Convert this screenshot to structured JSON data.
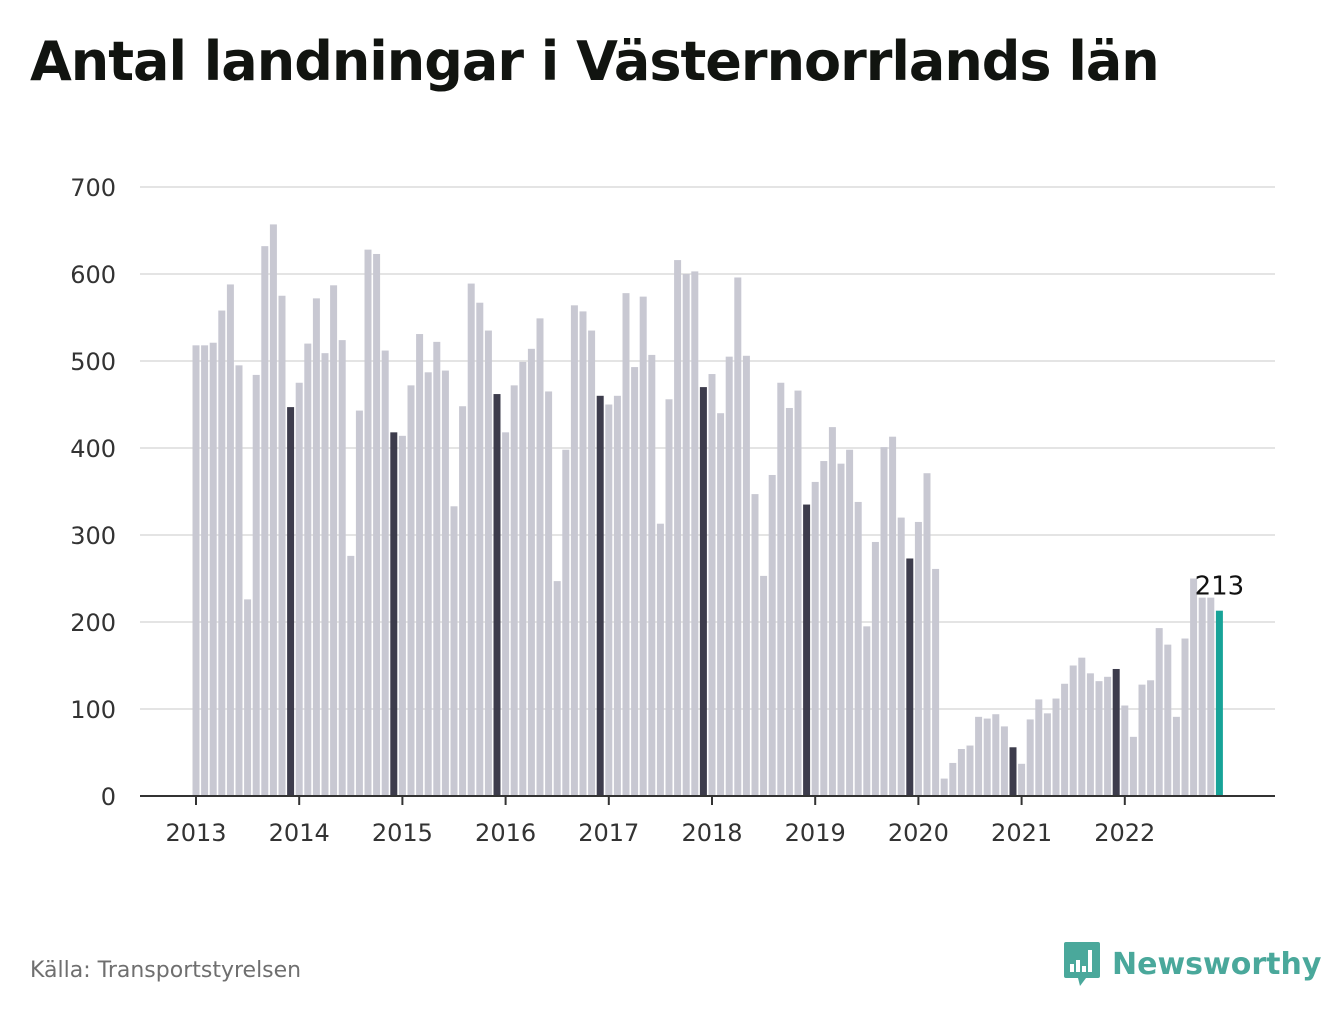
{
  "title": "Antal landningar i Västernorrlands län",
  "source": "Källa: Transportstyrelsen",
  "brand": {
    "name": "Newsworthy",
    "icon": "bar-chart-bubble-icon",
    "color": "#4aa89b"
  },
  "chart_data": {
    "type": "bar",
    "title": "Antal landningar i Västernorrlands län",
    "xlabel": "",
    "ylabel": "",
    "ylim": [
      0,
      700
    ],
    "yticks": [
      0,
      100,
      200,
      300,
      400,
      500,
      600,
      700
    ],
    "year_labels": [
      "2013",
      "2014",
      "2015",
      "2016",
      "2017",
      "2018",
      "2019",
      "2020",
      "2021",
      "2022"
    ],
    "grid": true,
    "legend": "none",
    "colors": {
      "bar": "#c8c8d2",
      "december": "#3d3c4c",
      "latest": "#17a398",
      "grid": "#dcdcdc",
      "axis": "#333333"
    },
    "start": "2013-01",
    "end": "2022-12",
    "last_value_label": "213",
    "values": [
      518,
      518,
      521,
      558,
      588,
      495,
      226,
      484,
      632,
      657,
      575,
      447,
      475,
      520,
      572,
      509,
      587,
      524,
      276,
      443,
      628,
      623,
      512,
      418,
      414,
      472,
      531,
      487,
      522,
      489,
      333,
      448,
      589,
      567,
      535,
      462,
      418,
      472,
      499,
      514,
      549,
      465,
      247,
      398,
      564,
      557,
      535,
      460,
      450,
      460,
      578,
      493,
      574,
      507,
      313,
      456,
      616,
      600,
      603,
      470,
      485,
      440,
      505,
      596,
      506,
      347,
      253,
      369,
      475,
      446,
      466,
      335,
      361,
      385,
      424,
      382,
      398,
      338,
      195,
      292,
      401,
      413,
      320,
      273,
      315,
      371,
      261,
      20,
      38,
      54,
      58,
      91,
      89,
      94,
      80,
      56,
      37,
      88,
      111,
      95,
      112,
      129,
      150,
      159,
      141,
      132,
      137,
      146,
      104,
      68,
      128,
      133,
      193,
      174,
      91,
      181,
      250,
      228,
      228,
      213
    ]
  }
}
